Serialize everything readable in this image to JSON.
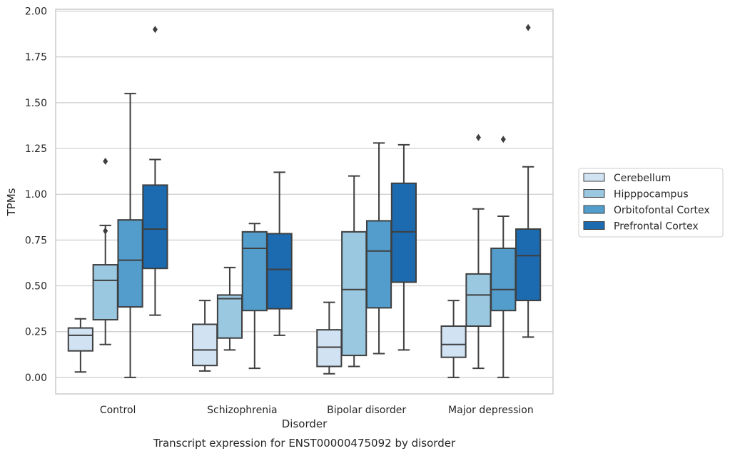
{
  "chart_data": {
    "type": "box",
    "xlabel": "Disorder",
    "ylabel": "TPMs",
    "caption": "Transcript expression for ENST00000475092 by disorder",
    "ylim": [
      -0.09,
      2.01
    ],
    "yticks": [
      "0.00",
      "0.25",
      "0.50",
      "0.75",
      "1.00",
      "1.25",
      "1.50",
      "1.75",
      "2.00"
    ],
    "grid": "horizontal",
    "legend_placement": "right",
    "categories": [
      "Control",
      "Schizophrenia",
      "Bipolar disorder",
      "Major depression"
    ],
    "series": [
      {
        "name": "Cerebellum",
        "color": "#d1e2f2",
        "boxes": [
          {
            "whisker_low": 0.03,
            "q1": 0.145,
            "median": 0.23,
            "q3": 0.27,
            "whisker_high": 0.32,
            "outliers": []
          },
          {
            "whisker_low": 0.035,
            "q1": 0.065,
            "median": 0.15,
            "q3": 0.29,
            "whisker_high": 0.42,
            "outliers": []
          },
          {
            "whisker_low": 0.02,
            "q1": 0.06,
            "median": 0.165,
            "q3": 0.26,
            "whisker_high": 0.41,
            "outliers": []
          },
          {
            "whisker_low": 0.0,
            "q1": 0.11,
            "median": 0.18,
            "q3": 0.28,
            "whisker_high": 0.42,
            "outliers": []
          }
        ]
      },
      {
        "name": "Hipppocampus",
        "color": "#9ac8e0",
        "boxes": [
          {
            "whisker_low": 0.18,
            "q1": 0.315,
            "median": 0.53,
            "q3": 0.615,
            "whisker_high": 0.83,
            "outliers": [
              0.8,
              1.18
            ]
          },
          {
            "whisker_low": 0.15,
            "q1": 0.215,
            "median": 0.43,
            "q3": 0.45,
            "whisker_high": 0.6,
            "outliers": []
          },
          {
            "whisker_low": 0.06,
            "q1": 0.12,
            "median": 0.48,
            "q3": 0.795,
            "whisker_high": 1.1,
            "outliers": []
          },
          {
            "whisker_low": 0.05,
            "q1": 0.28,
            "median": 0.45,
            "q3": 0.565,
            "whisker_high": 0.92,
            "outliers": [
              1.31
            ]
          }
        ]
      },
      {
        "name": "Orbitofontal Cortex",
        "color": "#529dcc",
        "boxes": [
          {
            "whisker_low": 0.0,
            "q1": 0.385,
            "median": 0.64,
            "q3": 0.86,
            "whisker_high": 1.55,
            "outliers": []
          },
          {
            "whisker_low": 0.05,
            "q1": 0.365,
            "median": 0.705,
            "q3": 0.795,
            "whisker_high": 0.84,
            "outliers": []
          },
          {
            "whisker_low": 0.13,
            "q1": 0.38,
            "median": 0.69,
            "q3": 0.855,
            "whisker_high": 1.28,
            "outliers": []
          },
          {
            "whisker_low": 0.0,
            "q1": 0.365,
            "median": 0.48,
            "q3": 0.705,
            "whisker_high": 0.88,
            "outliers": [
              1.3
            ]
          }
        ]
      },
      {
        "name": "Prefrontal Cortex",
        "color": "#1c6aaf",
        "boxes": [
          {
            "whisker_low": 0.34,
            "q1": 0.595,
            "median": 0.81,
            "q3": 1.05,
            "whisker_high": 1.19,
            "outliers": [
              1.9
            ]
          },
          {
            "whisker_low": 0.23,
            "q1": 0.375,
            "median": 0.59,
            "q3": 0.785,
            "whisker_high": 1.12,
            "outliers": []
          },
          {
            "whisker_low": 0.15,
            "q1": 0.52,
            "median": 0.795,
            "q3": 1.06,
            "whisker_high": 1.27,
            "outliers": []
          },
          {
            "whisker_low": 0.22,
            "q1": 0.42,
            "median": 0.665,
            "q3": 0.81,
            "whisker_high": 1.15,
            "outliers": [
              1.91
            ]
          }
        ]
      }
    ]
  }
}
